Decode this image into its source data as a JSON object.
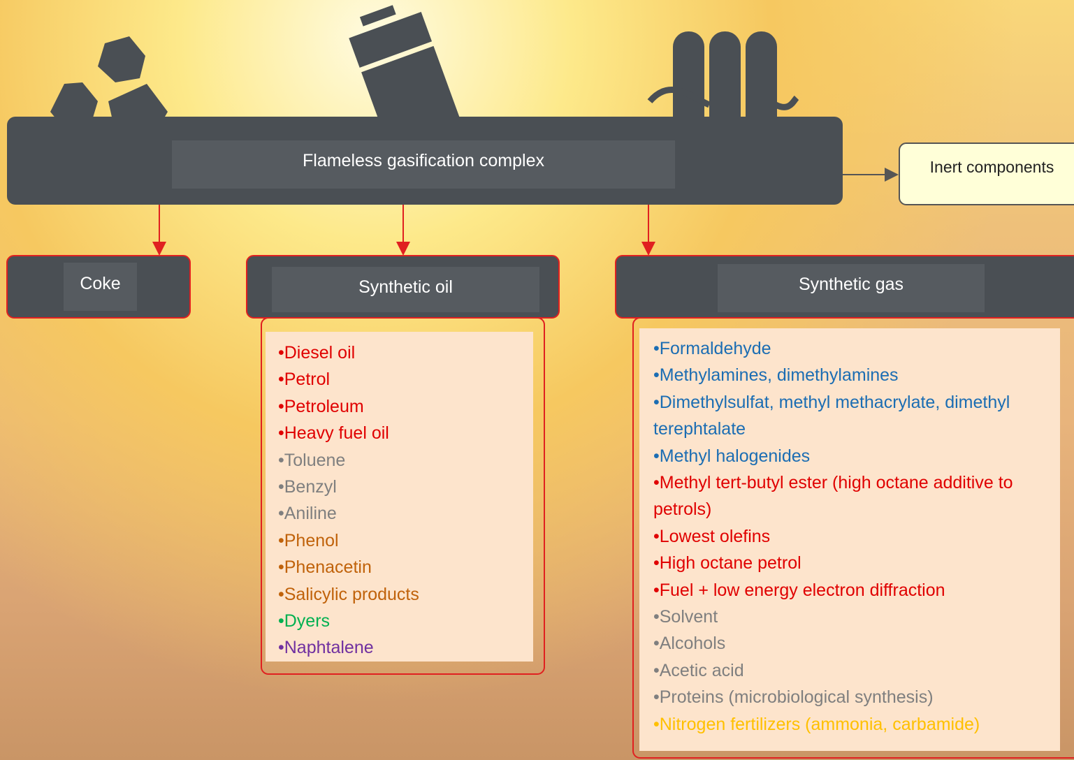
{
  "main": {
    "label": "Flameless gasification complex"
  },
  "inert": {
    "label": "Inert components"
  },
  "coke": {
    "label": "Coke"
  },
  "synthetic_oil": {
    "label": "Synthetic oil",
    "items": [
      {
        "text": "•Diesel oil",
        "color": "#e00000"
      },
      {
        "text": "•Petrol",
        "color": "#e00000"
      },
      {
        "text": "•Petroleum",
        "color": "#e00000"
      },
      {
        "text": "•Heavy fuel oil",
        "color": "#e00000"
      },
      {
        "text": "•Toluene",
        "color": "#7f7f7f"
      },
      {
        "text": "•Benzyl",
        "color": "#7f7f7f"
      },
      {
        "text": "•Aniline",
        "color": "#7f7f7f"
      },
      {
        "text": "•Phenol",
        "color": "#c0620a"
      },
      {
        "text": "•Phenacetin",
        "color": "#c0620a"
      },
      {
        "text": "•Salicylic products",
        "color": "#c0620a"
      },
      {
        "text": "•Dyers",
        "color": "#00b050"
      },
      {
        "text": "•Naphtalene",
        "color": "#7030a0"
      }
    ]
  },
  "synthetic_gas": {
    "label": "Synthetic gas",
    "items": [
      {
        "text": "•Formaldehyde",
        "color": "#1b6db3"
      },
      {
        "text": "•Methylamines, dimethylamines",
        "color": "#1b6db3"
      },
      {
        "text": "•Dimethylsulfat, methyl methacrylate, dimethyl terephtalate",
        "color": "#1b6db3"
      },
      {
        "text": "•Methyl halogenides",
        "color": "#1b6db3"
      },
      {
        "text": "•Methyl tert-butyl ester (high octane additive to petrols)",
        "color": "#e00000"
      },
      {
        "text": "•Lowest olefins",
        "color": "#e00000"
      },
      {
        "text": "•High octane petrol",
        "color": "#e00000"
      },
      {
        "text": "•Fuel + low energy electron diffraction",
        "color": "#e00000"
      },
      {
        "text": "•Solvent",
        "color": "#7f7f7f"
      },
      {
        "text": "•Alcohols",
        "color": "#7f7f7f"
      },
      {
        "text": "•Acetic acid",
        "color": "#7f7f7f"
      },
      {
        "text": "•Proteins (microbiological synthesis)",
        "color": "#7f7f7f"
      },
      {
        "text": "•Nitrogen fertilizers (ammonia, carbamide)",
        "color": "#ffc000"
      }
    ]
  }
}
